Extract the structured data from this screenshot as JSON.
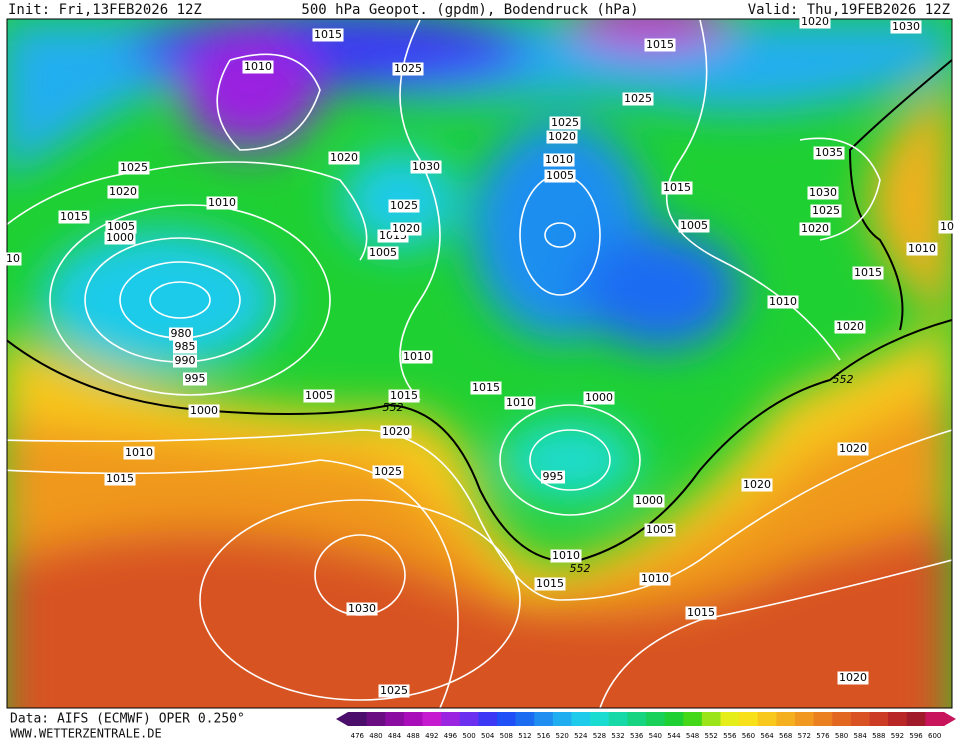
{
  "header": {
    "init": "Init: Fri,13FEB2026 12Z",
    "title": "500 hPa Geopot. (gpdm), Bodendruck (hPa)",
    "valid": "Valid: Thu,19FEB2026 12Z"
  },
  "footer": {
    "data": "Data: AIFS (ECMWF) OPER 0.250°",
    "site": "WWW.WETTERZENTRALE.DE"
  },
  "isobar_labels": [
    1015,
    1010,
    1025,
    1015,
    1020,
    1030,
    1025,
    1025,
    1020,
    1020,
    1030,
    1010,
    1005,
    1015,
    1035,
    1025,
    1020,
    1010,
    1025,
    1030,
    1025,
    1015,
    1005,
    1000,
    1015,
    1020,
    1005,
    1005,
    1020,
    1010,
    1015,
    10,
    10,
    1010,
    980,
    985,
    990,
    1020,
    995,
    1010,
    1015,
    1005,
    1015,
    1010,
    1000,
    1000,
    1020,
    1010,
    1020,
    1015,
    1025,
    995,
    1020,
    1000,
    1005,
    1010,
    1015,
    1010,
    1030,
    1015,
    1020,
    1025
  ],
  "geopot_labels": [
    552,
    552,
    552
  ],
  "colorbar": {
    "levels": [
      476,
      480,
      484,
      488,
      492,
      496,
      500,
      504,
      508,
      512,
      516,
      520,
      524,
      528,
      532,
      536,
      540,
      544,
      548,
      552,
      556,
      560,
      564,
      568,
      572,
      576,
      580,
      584,
      588,
      592,
      596,
      600
    ],
    "colors": [
      "#4b0f6b",
      "#6a0d83",
      "#8a0ca0",
      "#a90cb9",
      "#c61ad0",
      "#9a24e0",
      "#6b2ff0",
      "#3c37f5",
      "#1f4ff6",
      "#1c6cf2",
      "#1f8ef0",
      "#21aef0",
      "#1fcbea",
      "#1bdcd0",
      "#17d9a8",
      "#17d480",
      "#19d058",
      "#1fd032",
      "#45d819",
      "#9be41a",
      "#e6ee19",
      "#f8e11a",
      "#f8c81c",
      "#f4b01e",
      "#f0981f",
      "#ea8020",
      "#e26822",
      "#d85224",
      "#cc3c25",
      "#b82626",
      "#a01a2a",
      "#c7145a"
    ]
  }
}
